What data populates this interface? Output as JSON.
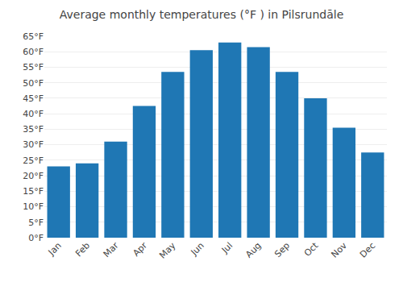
{
  "chart_data": {
    "type": "bar",
    "title": "Average monthly temperatures (°F ) in Pilsrundāle",
    "categories": [
      "Jan",
      "Feb",
      "Mar",
      "Apr",
      "May",
      "Jun",
      "Jul",
      "Aug",
      "Sep",
      "Oct",
      "Nov",
      "Dec"
    ],
    "values": [
      23,
      24,
      31,
      42.5,
      53.5,
      60.5,
      63,
      61.5,
      53.5,
      45,
      35.5,
      27.5
    ],
    "ylim": [
      0,
      65
    ],
    "yticks": [
      {
        "value": 0,
        "label": "0°F"
      },
      {
        "value": 5,
        "label": "5°F"
      },
      {
        "value": 10,
        "label": "10°F"
      },
      {
        "value": 15,
        "label": "15°F"
      },
      {
        "value": 20,
        "label": "20°F"
      },
      {
        "value": 25,
        "label": "25°F"
      },
      {
        "value": 30,
        "label": "30°F"
      },
      {
        "value": 35,
        "label": "35°F"
      },
      {
        "value": 40,
        "label": "40°F"
      },
      {
        "value": 45,
        "label": "45°F"
      },
      {
        "value": 50,
        "label": "50°F"
      },
      {
        "value": 55,
        "label": "55°F"
      },
      {
        "value": 60,
        "label": "60°F"
      },
      {
        "value": 65,
        "label": "65°F"
      }
    ],
    "grid": true
  }
}
